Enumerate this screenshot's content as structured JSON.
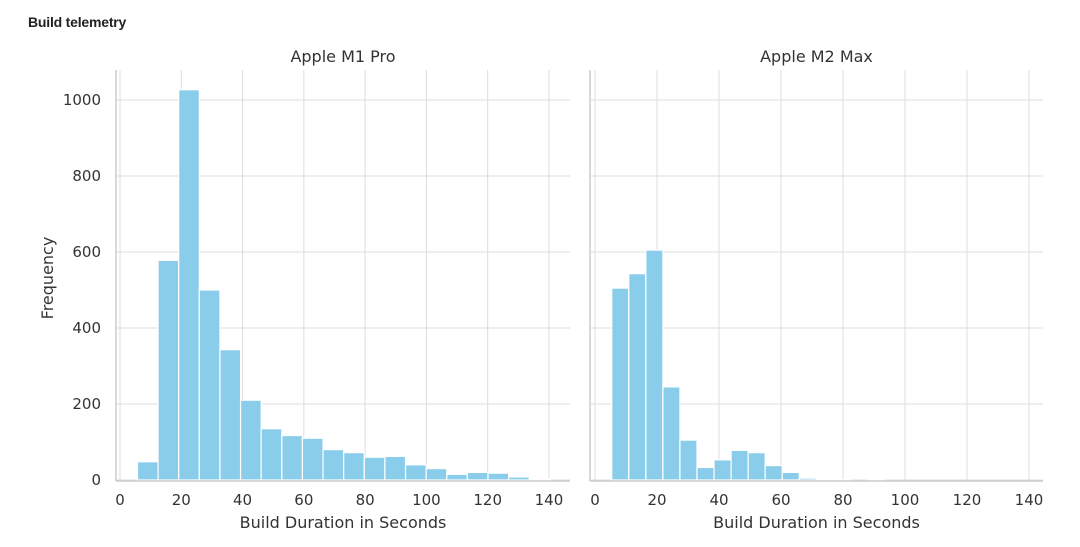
{
  "header": {
    "title": "Build telemetry"
  },
  "chart_data": {
    "type": "bar",
    "title": "Build telemetry",
    "ylabel": "Frequency",
    "ylim": [
      0,
      1080
    ],
    "yticks": [
      0,
      200,
      400,
      600,
      800,
      1000
    ],
    "xticks": [
      0,
      20,
      40,
      60,
      80,
      100,
      120,
      140
    ],
    "grid": true,
    "bar_color": "#89CDEA",
    "panels": [
      {
        "title": "Apple M1 Pro",
        "xlabel": "Build Duration in Seconds",
        "xlim": [
          -3,
          145
        ],
        "bin_start": 5.7,
        "bin_width": 6.73,
        "values": [
          48,
          578,
          1027,
          500,
          343,
          210,
          135,
          117,
          110,
          80,
          72,
          60,
          62,
          40,
          30,
          15,
          20,
          18,
          8,
          3
        ]
      },
      {
        "title": "Apple M2 Max",
        "xlabel": "Build Duration in Seconds",
        "xlim": [
          -3,
          145
        ],
        "bin_start": 5.4,
        "bin_width": 5.5,
        "values": [
          505,
          543,
          605,
          245,
          105,
          33,
          53,
          78,
          72,
          38,
          20,
          5,
          2,
          1,
          0,
          1,
          0,
          0,
          0,
          0,
          0,
          0,
          0,
          0
        ]
      }
    ]
  }
}
